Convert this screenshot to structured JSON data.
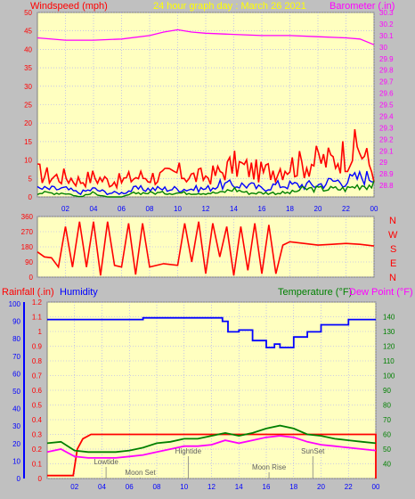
{
  "colors": {
    "background": "#c0c0c0",
    "plot": "#ffffc0",
    "grid": "#a0a0ff",
    "wind_max": "#ff0000",
    "wind_avg": "#0000ff",
    "wind_min": "#008000",
    "barometer": "#ff00ff",
    "direction": "#ff0000",
    "rain": "#ff0000",
    "humidity": "#0000ff",
    "temperature": "#008000",
    "dewpoint": "#ff00ff",
    "left_title": "#ff0000",
    "right_title": "#ff00ff",
    "date_title": "#ffff00"
  },
  "panel1": {
    "left_label": "Windspeed (mph)",
    "date_label": "24 hour graph day : March 26 2021",
    "right_label": "Barometer (.in)"
  },
  "panel2": {
    "compass": [
      "N",
      "W",
      "S",
      "E",
      "N"
    ]
  },
  "panel3": {
    "rain_label": "Rainfall (.in)",
    "humidity_label": "Humidity",
    "temp_label": "Temperature (°F)",
    "dew_label": "Dew Point (°F)",
    "events": [
      {
        "label": "Lowtide",
        "hour": 4.3
      },
      {
        "label": "Moon Set",
        "hour": 6.8
      },
      {
        "label": "Hightide",
        "hour": 10.3
      },
      {
        "label": "Moon Rise",
        "hour": 16.2
      },
      {
        "label": "SunSet",
        "hour": 19.4
      }
    ]
  },
  "chart_data": [
    {
      "type": "line",
      "x_label_ticks": [
        "02",
        "04",
        "06",
        "08",
        "10",
        "12",
        "14",
        "16",
        "18",
        "20",
        "22",
        "00"
      ],
      "xlim": [
        0,
        24
      ],
      "ylabel": "Windspeed (mph)",
      "ylim": [
        0,
        50
      ],
      "yticks": [
        0,
        5,
        10,
        15,
        20,
        25,
        30,
        35,
        40,
        45,
        50
      ],
      "y2label": "Barometer (.in)",
      "y2lim": [
        28.7,
        30.3
      ],
      "y2ticks": [
        "28.8",
        "28.9",
        "29",
        "29.1",
        "29.2",
        "29.3",
        "29.4",
        "29.5",
        "29.6",
        "29.7",
        "29.8",
        "29.9",
        "30",
        "30.1",
        "30.2",
        "30.3"
      ],
      "series": [
        {
          "name": "Windspeed (mph)",
          "role": "gust",
          "x": [
            0,
            1,
            2,
            3,
            4,
            5,
            6,
            7,
            8,
            9,
            10,
            11,
            12,
            13,
            14,
            15,
            16,
            17,
            18,
            19,
            20,
            21,
            22,
            23,
            24
          ],
          "values": [
            6,
            5,
            5,
            4,
            5,
            4,
            4,
            5,
            5,
            5,
            6,
            5,
            5,
            6,
            8,
            7,
            6,
            7,
            8,
            8,
            9,
            9,
            11,
            12,
            6
          ]
        },
        {
          "name": "Windspeed (mph)",
          "role": "average",
          "x": [
            0,
            1,
            2,
            3,
            4,
            5,
            6,
            7,
            8,
            9,
            10,
            11,
            12,
            13,
            14,
            15,
            16,
            17,
            18,
            19,
            20,
            21,
            22,
            23,
            24
          ],
          "values": [
            2,
            2,
            2,
            1,
            2,
            1,
            1,
            2,
            2,
            2,
            2,
            2,
            2,
            3,
            3,
            3,
            2,
            3,
            3,
            3,
            3,
            4,
            4,
            5,
            5
          ]
        },
        {
          "name": "Windspeed (mph)",
          "role": "minimum",
          "x": [
            0,
            1,
            2,
            3,
            4,
            5,
            6,
            7,
            8,
            9,
            10,
            11,
            12,
            13,
            14,
            15,
            16,
            17,
            18,
            19,
            20,
            21,
            22,
            23,
            24
          ],
          "values": [
            1,
            1,
            1,
            0,
            1,
            0,
            0,
            1,
            1,
            1,
            1,
            1,
            1,
            1,
            2,
            1,
            1,
            1,
            1,
            2,
            2,
            2,
            2,
            3,
            3
          ]
        },
        {
          "name": "Barometer (.in)",
          "x": [
            0,
            2,
            4,
            6,
            8,
            9,
            10,
            11,
            12,
            14,
            16,
            18,
            20,
            22,
            23,
            24
          ],
          "values": [
            30.08,
            30.06,
            30.06,
            30.07,
            30.1,
            30.13,
            30.15,
            30.13,
            30.12,
            30.11,
            30.1,
            30.1,
            30.09,
            30.08,
            30.07,
            30.02
          ]
        }
      ]
    },
    {
      "type": "line",
      "x_label_ticks": [],
      "xlim": [
        0,
        24
      ],
      "ylabel": "",
      "ylim": [
        0,
        360
      ],
      "yticks": [
        0,
        90,
        180,
        270,
        360
      ],
      "series": [
        {
          "name": "Wind Direction",
          "x": [
            0,
            0.5,
            1,
            1.5,
            2,
            2.5,
            3,
            3.5,
            4,
            4.5,
            5,
            5.5,
            6,
            6.5,
            7,
            7.5,
            8,
            9,
            10,
            10.5,
            11,
            11.5,
            12,
            12.5,
            13,
            13.5,
            14,
            14.5,
            15,
            15.5,
            16,
            16.5,
            17,
            17.5,
            18,
            19,
            20,
            21,
            22,
            23,
            24
          ],
          "values": [
            150,
            120,
            115,
            60,
            300,
            60,
            330,
            60,
            330,
            10,
            330,
            70,
            60,
            320,
            15,
            320,
            60,
            80,
            70,
            320,
            90,
            330,
            20,
            320,
            120,
            300,
            10,
            300,
            40,
            320,
            20,
            310,
            20,
            190,
            210,
            200,
            190,
            195,
            200,
            195,
            185
          ]
        }
      ]
    },
    {
      "type": "line",
      "x_label_ticks": [
        "02",
        "04",
        "06",
        "08",
        "10",
        "12",
        "14",
        "16",
        "18",
        "20",
        "22",
        "00"
      ],
      "xlim": [
        0,
        24
      ],
      "ylabel": "Rainfall (.in)",
      "ylim": [
        0,
        1.2
      ],
      "yticks": [
        "0",
        "0.1",
        "0.2",
        "0.3",
        "0.4",
        "0.5",
        "0.6",
        "0.7",
        "0.8",
        "0.9",
        "1",
        "1.1",
        "1.2"
      ],
      "humidity_lim": [
        0,
        100
      ],
      "humidity_ticks": [
        0,
        10,
        20,
        30,
        40,
        50,
        60,
        70,
        80,
        90,
        100
      ],
      "y2label": "Temperature (°F)",
      "y2lim": [
        30,
        150
      ],
      "y2ticks": [
        40,
        50,
        60,
        70,
        80,
        90,
        100,
        110,
        120,
        130,
        140
      ],
      "series": [
        {
          "name": "Humidity",
          "x": [
            0,
            2,
            4,
            6,
            7,
            8,
            10,
            12,
            12.8,
            13.2,
            14,
            15,
            16,
            16.6,
            17,
            18,
            19,
            20,
            22,
            24
          ],
          "values": [
            91,
            91,
            91,
            91,
            92,
            92,
            92,
            92,
            90,
            84,
            85,
            79,
            75,
            77,
            75,
            81,
            84,
            88,
            91,
            91
          ]
        },
        {
          "name": "Rainfall (.in)",
          "x": [
            0,
            1.9,
            2.2,
            2.6,
            3.2,
            4,
            24
          ],
          "values": [
            0.02,
            0.02,
            0.2,
            0.27,
            0.3,
            0.3,
            0.3
          ]
        },
        {
          "name": "Temperature (°F)",
          "x": [
            0,
            1,
            1.5,
            2,
            3,
            4,
            5,
            6,
            7,
            8,
            9,
            10,
            11,
            12,
            12.5,
            13,
            14,
            15,
            16,
            17,
            18,
            19,
            20,
            21,
            22,
            23,
            24
          ],
          "values": [
            54,
            55,
            52,
            49,
            48,
            48,
            48,
            49,
            51,
            54,
            55,
            57,
            57,
            59,
            60,
            61,
            59,
            61,
            64,
            66,
            64,
            60,
            59,
            57,
            56,
            55,
            54
          ]
        },
        {
          "name": "Dew Point (°F)",
          "x": [
            0,
            1,
            2,
            3,
            4,
            5,
            6,
            7,
            8,
            9,
            10,
            11,
            12,
            13,
            14,
            15,
            16,
            17,
            18,
            19,
            20,
            21,
            22,
            23,
            24
          ],
          "values": [
            48,
            50,
            45,
            44,
            44,
            44,
            45,
            46,
            48,
            50,
            52,
            52,
            53,
            56,
            54,
            56,
            58,
            59,
            58,
            55,
            53,
            52,
            51,
            50,
            49
          ]
        }
      ]
    }
  ]
}
